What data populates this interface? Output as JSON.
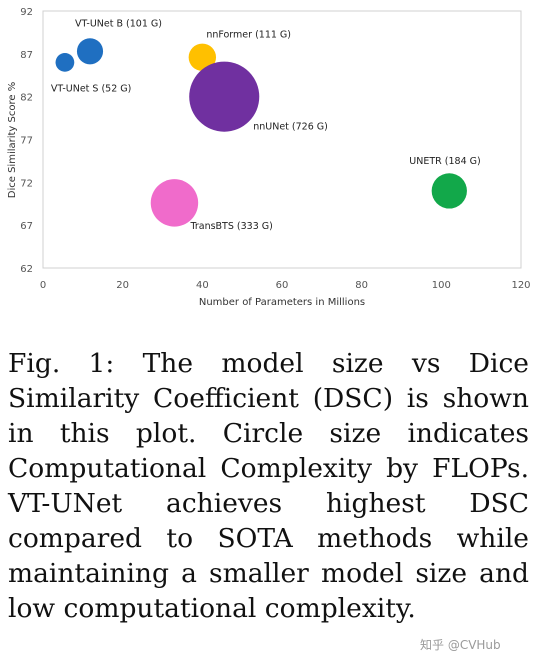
{
  "chart_data": {
    "type": "scatter",
    "xlabel": "Number of Parameters in Millions",
    "ylabel": "Dice Similarity Score %",
    "xlim": [
      0,
      120
    ],
    "ylim": [
      62,
      92
    ],
    "xticks": [
      0,
      20,
      40,
      60,
      80,
      100,
      120
    ],
    "yticks": [
      62,
      67,
      72,
      77,
      82,
      87,
      92
    ],
    "grid": false,
    "size_encoding": "FLOPs (G)",
    "points": [
      {
        "label": "VT-UNet S (52 G)",
        "x": 5.5,
        "y": 86.0,
        "flops": 52,
        "color": "#1f6fc1"
      },
      {
        "label": "VT-UNet B (101 G)",
        "x": 11.8,
        "y": 87.3,
        "flops": 101,
        "color": "#1f6fc1"
      },
      {
        "label": "nnFormer (111 G)",
        "x": 40.0,
        "y": 86.6,
        "flops": 111,
        "color": "#ffc000"
      },
      {
        "label": "nnUNet (726 G)",
        "x": 45.5,
        "y": 82.0,
        "flops": 726,
        "color": "#7030a0"
      },
      {
        "label": "UNETR (184 G)",
        "x": 102.0,
        "y": 71.0,
        "flops": 184,
        "color": "#12a84a"
      },
      {
        "label": "TransBTS (333 G)",
        "x": 33.0,
        "y": 69.6,
        "flops": 333,
        "color": "#f06bcb"
      }
    ]
  },
  "caption": {
    "text": "Fig. 1: The model size vs Dice Similarity Coefficient (DSC) is shown in this plot. Circle size indicates Computational Complexity by FLOPs. VT-UNet achieves highest DSC compared to SOTA methods while maintaining a smaller model size and low computational complexity."
  },
  "watermark": "知乎 @CVHub"
}
